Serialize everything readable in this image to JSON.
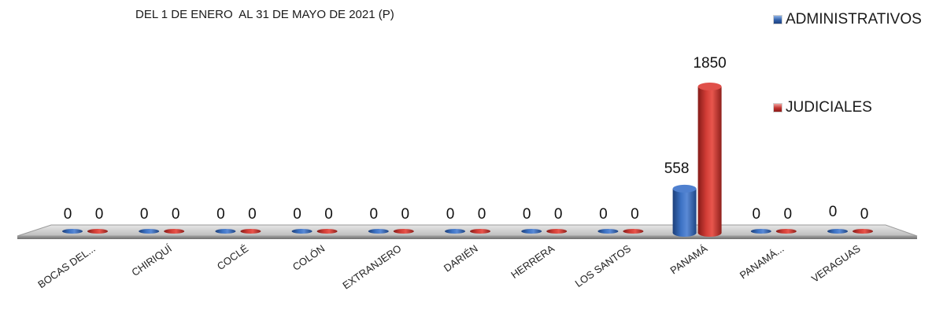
{
  "chart_data": {
    "type": "bar",
    "subtitle": "DEL 1 DE ENERO  AL 31 DE MAYO DE 2021 (P)",
    "categories": [
      "BOCAS DEL...",
      "CHIRIQUÍ",
      "COCLÉ",
      "COLÓN",
      "EXTRANJERO",
      "DARIÉN",
      "HERRERA",
      "LOS SANTOS",
      "PANAMÁ",
      "PANAMÁ...",
      "VERAGUAS"
    ],
    "series": [
      {
        "name": "ADMINISTRATIVOS",
        "values": [
          0,
          0,
          0,
          0,
          0,
          0,
          0,
          0,
          558,
          0,
          0
        ],
        "color": "#2f5ea8"
      },
      {
        "name": "JUDICIALES",
        "values": [
          0,
          0,
          0,
          0,
          0,
          0,
          0,
          0,
          1850,
          0,
          0
        ],
        "color": "#c0302c"
      }
    ],
    "data_labels": true,
    "legend_position": "top-right",
    "style": "3d-cylinder"
  }
}
